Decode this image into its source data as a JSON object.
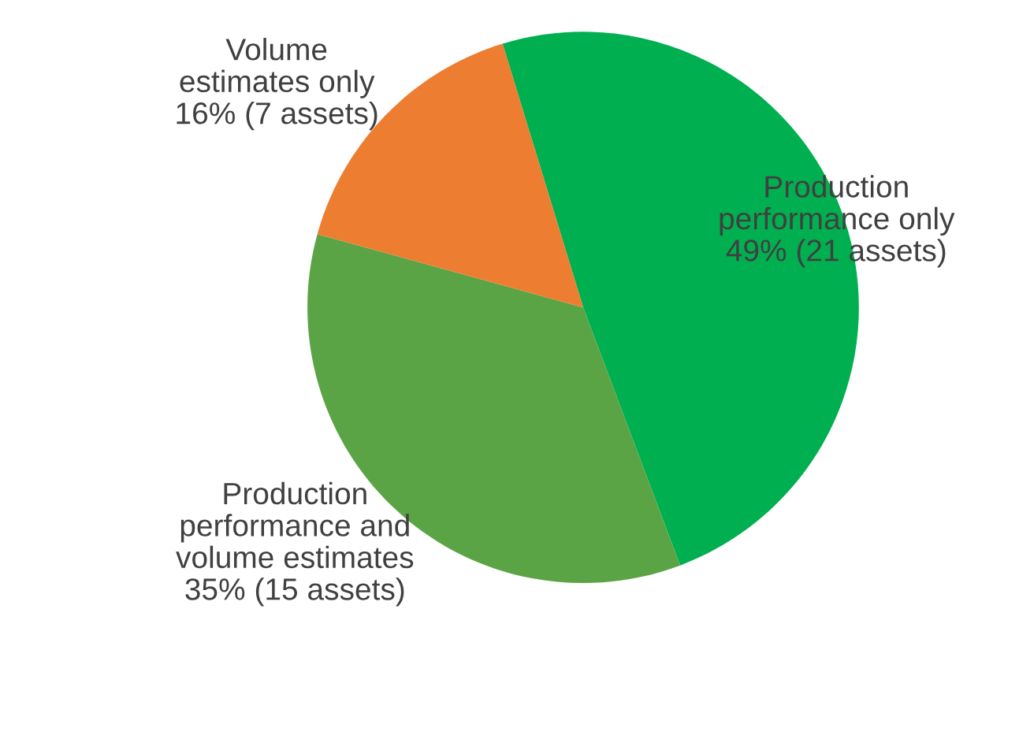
{
  "chart_data": {
    "type": "pie",
    "categories": [
      "Production\nperformance only",
      "Production\nperformance and\nvolume estimates",
      "Volume\nestimates only"
    ],
    "values": [
      49,
      35,
      16
    ],
    "value_labels": [
      "49% (21 assets)",
      "35% (15 assets)",
      "16% (7 assets)"
    ],
    "colors": [
      "#00b050",
      "#5aa445",
      "#ed7d31"
    ],
    "legend": false
  }
}
